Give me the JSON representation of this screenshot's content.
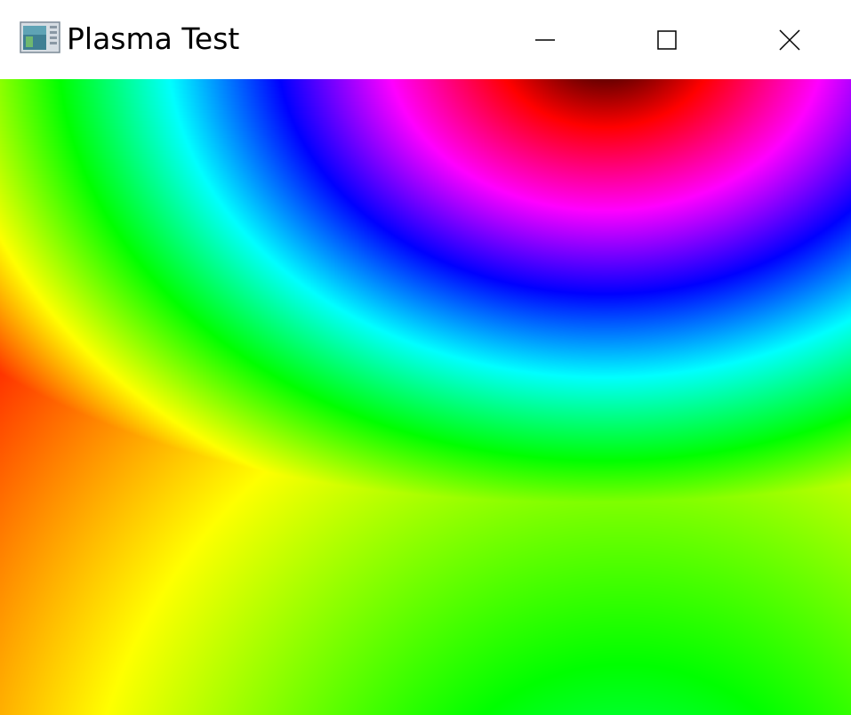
{
  "window": {
    "title": "Plasma Test",
    "app_icon": "java-app-icon",
    "controls": {
      "minimize_icon": "minimize-icon",
      "maximize_icon": "maximize-icon",
      "close_icon": "close-icon"
    }
  },
  "plasma": {
    "palette": [
      "#ff0000",
      "#ffff00",
      "#00ff00",
      "#00ffff",
      "#0000ff",
      "#ff00ff",
      "#ff0000",
      "#000000"
    ]
  }
}
